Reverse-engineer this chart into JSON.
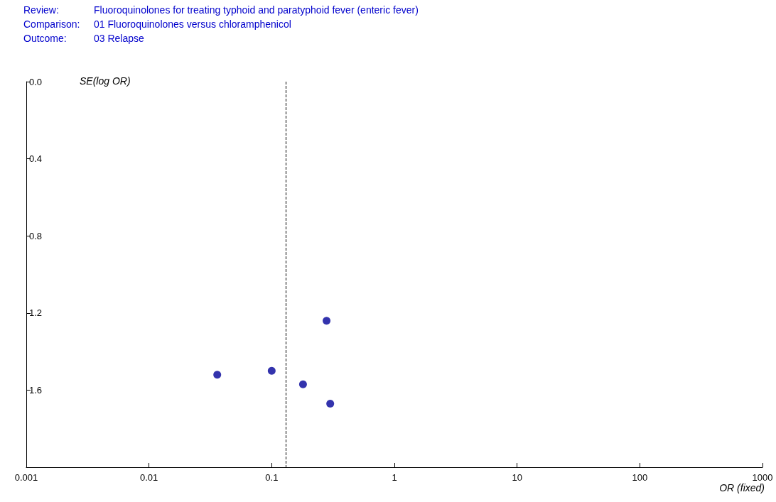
{
  "chart_data": {
    "type": "scatter",
    "annotations": [
      "Review:",
      "Fluoroquinolones for treating typhoid and paratyphoid fever (enteric fever)",
      "Comparison:",
      "01 Fluoroquinolones versus chloramphenicol",
      "Outcome:",
      "03 Relapse"
    ],
    "xlabel": "OR (fixed)",
    "ylabel": "SE(log OR)",
    "x": [
      0.28,
      0.036,
      0.1,
      0.18,
      0.3
    ],
    "series": [
      {
        "color": "#000099",
        "values": [
          1.24,
          1.52,
          1.5,
          1.57,
          1.67
        ]
      }
    ],
    "log": "x",
    "marker": "circle",
    "grid": false,
    "xlim": [
      0.001,
      1000
    ],
    "xticks": [
      0.001,
      0.01,
      0.1,
      1,
      10,
      100,
      1000
    ],
    "ylim": [
      2.0,
      0
    ],
    "yticks": [
      {
        "value": 0,
        "label": "0.0"
      },
      0.4,
      0.8,
      1.2,
      1.6
    ],
    "ref_lines": [
      {
        "axis": "x",
        "value": 0.134,
        "color": "#000000",
        "line_style": "dashed"
      }
    ]
  }
}
